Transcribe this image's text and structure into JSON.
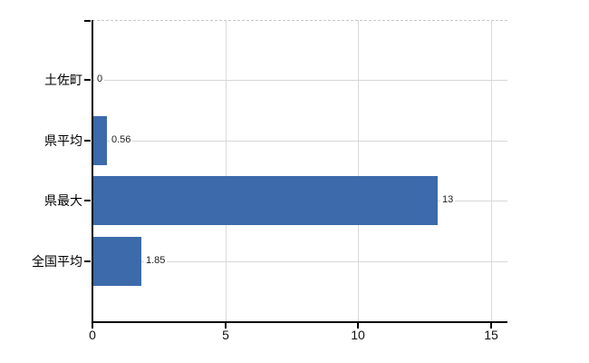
{
  "chart_data": {
    "type": "bar",
    "orientation": "horizontal",
    "title": "",
    "xlabel": "",
    "ylabel": "",
    "categories": [
      "土佐町",
      "県平均",
      "県最大",
      "全国平均"
    ],
    "values": [
      0,
      0.56,
      13,
      1.85
    ],
    "value_labels": [
      "0",
      "0.56",
      "13",
      "1.85"
    ],
    "xlim": [
      0,
      15
    ],
    "xticks": [
      0,
      5,
      10,
      15
    ],
    "xtick_labels": [
      "0",
      "5",
      "10",
      "15"
    ],
    "grid": true,
    "legend": false,
    "colors": {
      "bar": "#3c6aaa",
      "axis": "#000000",
      "vertical_gridline": "#dadada",
      "horizontal_gridline": "#d4d9d4",
      "top_border_dashed": "#c8c8c8",
      "text": "#000000",
      "value_text": "#1c1c1c",
      "background": "#ffffff"
    }
  }
}
